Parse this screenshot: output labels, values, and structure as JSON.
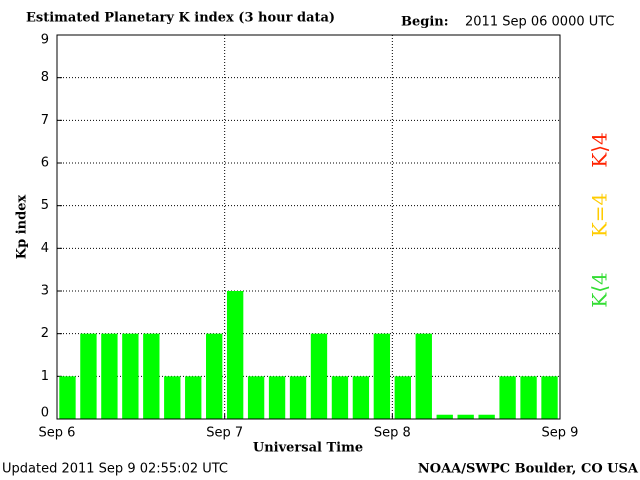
{
  "chart_data": {
    "type": "bar",
    "title": "Estimated Planetary K index (3 hour data)",
    "begin_label": "Begin:",
    "begin": "2011 Sep 06 0000 UTC",
    "y_label": "Kp index",
    "x_label": "Universal Time",
    "updated": "Updated 2011 Sep  9 02:55:02 UTC",
    "source": "NOAA/SWPC Boulder, CO USA",
    "x": [
      1.5,
      4.5,
      7.5,
      10.5,
      13.5,
      16.5,
      19.5,
      22.5,
      25.5,
      28.5,
      31.5,
      34.5,
      37.5,
      40.5,
      43.5,
      46.5,
      49.5,
      52.5,
      55.5,
      58.5,
      61.5,
      64.5,
      67.5,
      70.5
    ],
    "values": [
      1,
      2,
      2,
      2,
      2,
      1,
      1,
      2,
      3,
      1,
      1,
      1,
      2,
      1,
      1,
      2,
      1,
      2,
      0.1,
      0.1,
      0.1,
      1,
      1,
      1
    ],
    "color": "#00ff00",
    "xlim": [
      0,
      72
    ],
    "xticks": [
      {
        "value": 0,
        "label": "Sep 6"
      },
      {
        "value": 24,
        "label": "Sep 7"
      },
      {
        "value": 48,
        "label": "Sep 8"
      },
      {
        "value": 72,
        "label": "Sep 9"
      }
    ],
    "ylim": [
      0,
      9
    ],
    "yticks": [
      0,
      1,
      2,
      3,
      4,
      5,
      6,
      7,
      8,
      9
    ],
    "grid": true,
    "legend": [
      {
        "name": "K⟨4",
        "color": "#33dd33"
      },
      {
        "name": "K=4",
        "color": "#ffcc00"
      },
      {
        "name": "K⟩4",
        "color": "#ff2200"
      }
    ]
  }
}
